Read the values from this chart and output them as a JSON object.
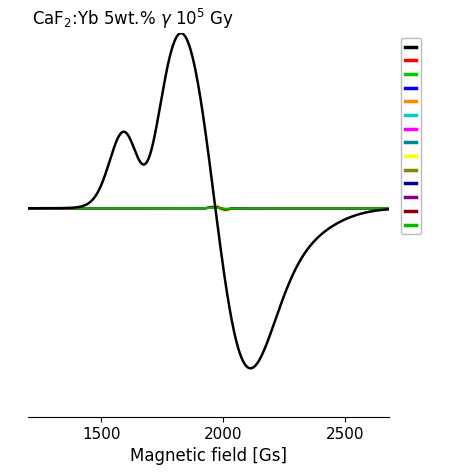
{
  "title_part1": "CaF",
  "title_sub": "2",
  "title_part2": ":Yb 5wt.% γ 10",
  "title_sup": "5",
  "title_part3": " Gy",
  "xlabel": "Magnetic field [Gs]",
  "xlim": [
    1200,
    2680
  ],
  "ylim": [
    -1.05,
    0.88
  ],
  "x_ticks": [
    1500,
    2000,
    2500
  ],
  "colors": [
    "#000000",
    "#ff0000",
    "#00cc00",
    "#0000ff",
    "#ff8800",
    "#00cccc",
    "#ff00ff",
    "#008888",
    "#ffff00",
    "#888800",
    "#000099",
    "#880088",
    "#880000",
    "#00bb00"
  ],
  "black_scale": 0.88,
  "colored_scale": 0.42,
  "figsize": [
    4.74,
    4.74
  ],
  "dpi": 100
}
